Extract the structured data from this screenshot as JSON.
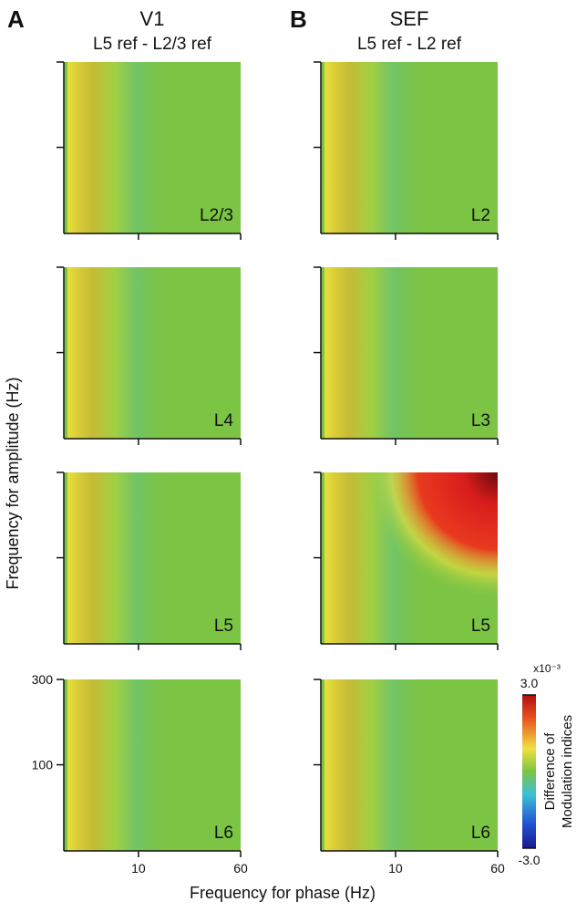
{
  "columns": [
    {
      "letter": "A",
      "title": "V1",
      "subtitle": "L5 ref - L2/3 ref",
      "panels": [
        "L2/3",
        "L4",
        "L5",
        "L6"
      ]
    },
    {
      "letter": "B",
      "title": "SEF",
      "subtitle": "L5 ref - L2 ref",
      "panels": [
        "L2",
        "L3",
        "L5",
        "L6"
      ]
    }
  ],
  "axes": {
    "xlabel": "Frequency for phase (Hz)",
    "ylabel": "Frequency for amplitude (Hz)",
    "xscale": "log",
    "yscale": "log",
    "xlim": [
      2.7,
      60
    ],
    "ylim": [
      33,
      300
    ],
    "xticks": [
      10,
      60
    ],
    "yticks": [
      100,
      300
    ]
  },
  "colorbar": {
    "multiplier": "x10⁻³",
    "label": [
      "Difference of",
      "Modulation indices"
    ],
    "clim": [
      -3,
      3
    ],
    "ticks": [
      {
        "value": 3,
        "label": "3.0"
      },
      {
        "value": -3,
        "label": "-3.0"
      }
    ]
  }
}
